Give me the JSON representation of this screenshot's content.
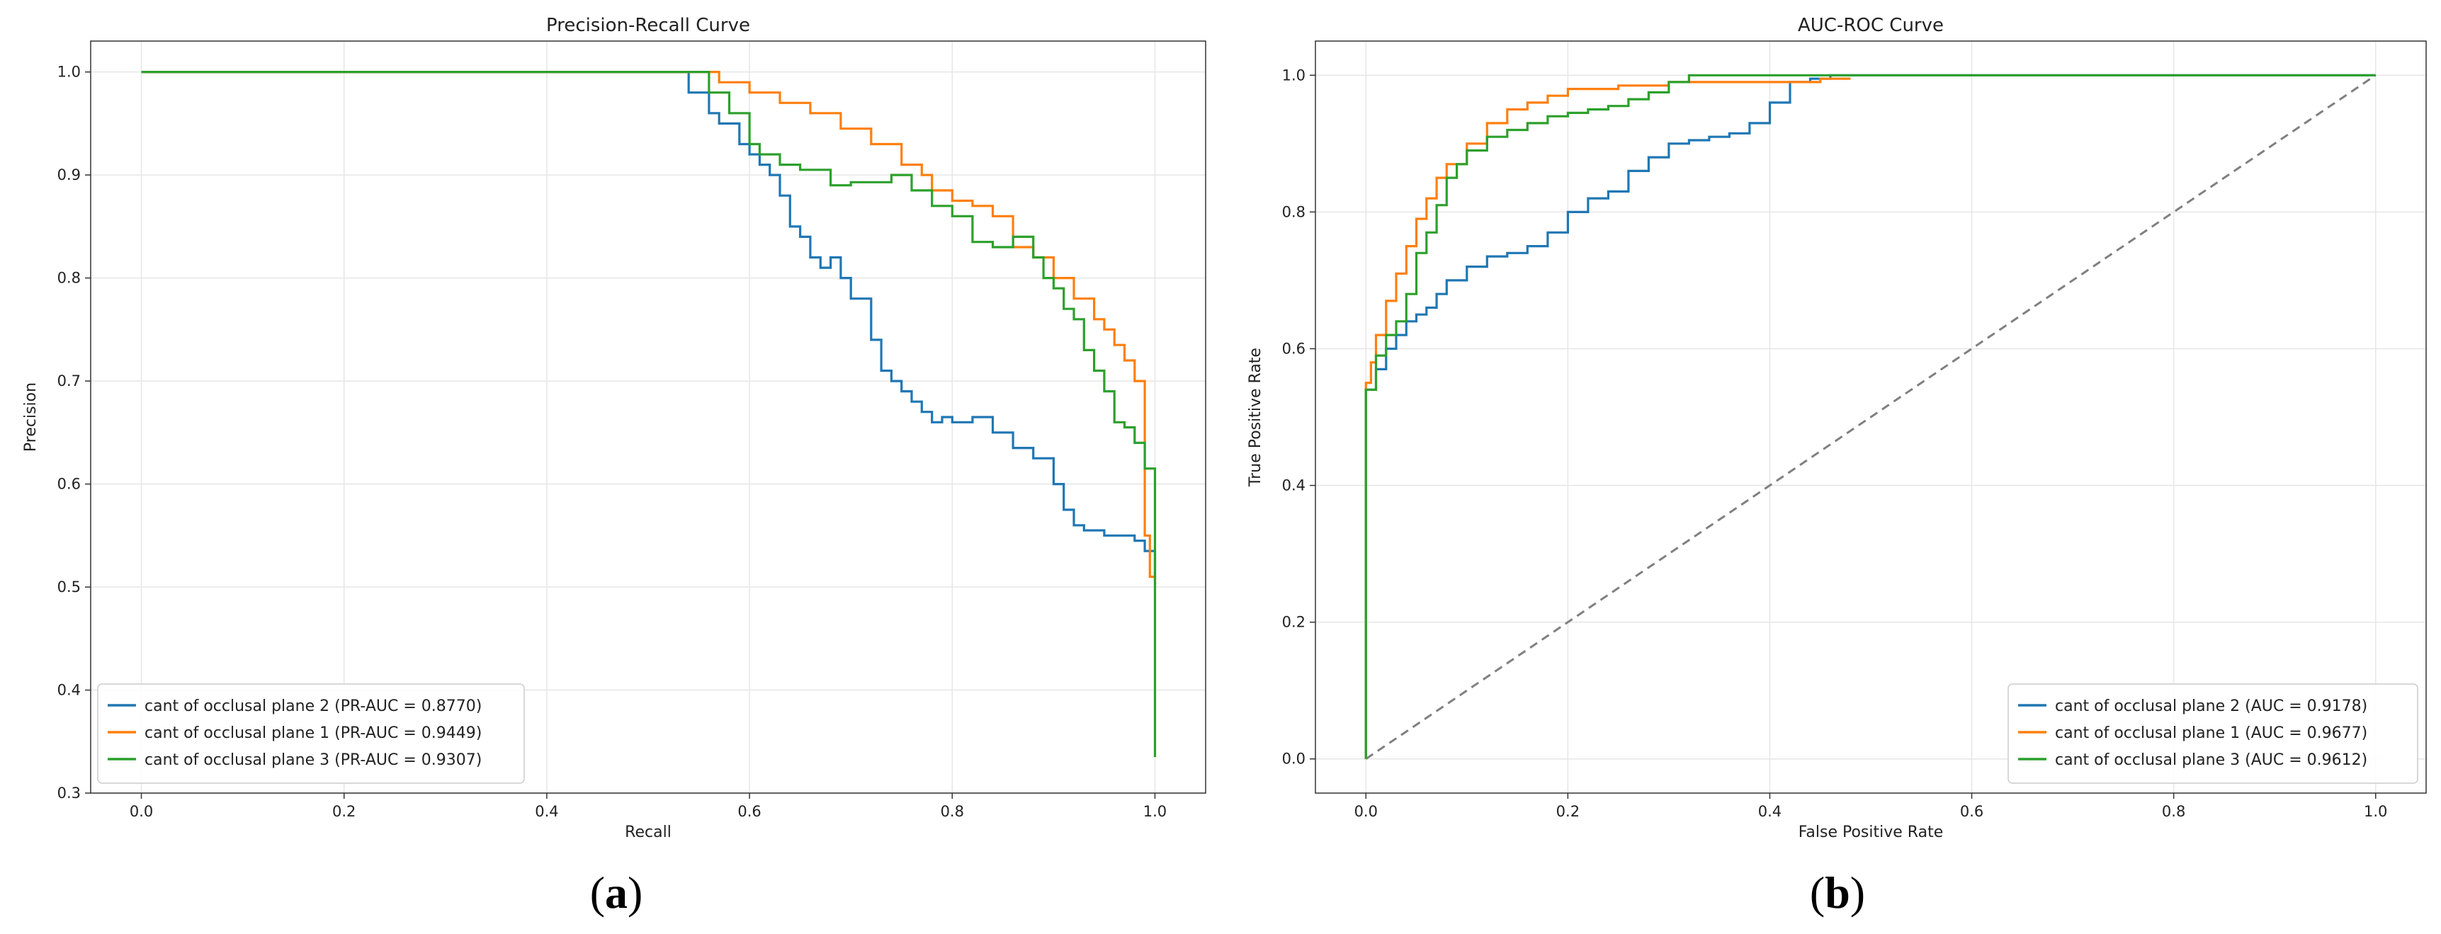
{
  "panels": [
    {
      "label_open": "(",
      "label_letter": "a",
      "label_close": ")"
    },
    {
      "label_open": "(",
      "label_letter": "b",
      "label_close": ")"
    }
  ],
  "colors": {
    "series_blue": "#1f77b4",
    "series_orange": "#ff7f0e",
    "series_green": "#2ca02c",
    "grid": "#e6e6e6",
    "diagonal": "#808080"
  },
  "chart_data": [
    {
      "type": "line",
      "title": "Precision-Recall Curve",
      "xlabel": "Recall",
      "ylabel": "Precision",
      "xlim": [
        -0.05,
        1.05
      ],
      "ylim": [
        0.3,
        1.03
      ],
      "xticks": [
        0.0,
        0.2,
        0.4,
        0.6,
        0.8,
        1.0
      ],
      "xtick_labels": [
        "0.0",
        "0.2",
        "0.4",
        "0.6",
        "0.8",
        "1.0"
      ],
      "yticks": [
        0.3,
        0.4,
        0.5,
        0.6,
        0.7,
        0.8,
        0.9,
        1.0
      ],
      "ytick_labels": [
        "0.3",
        "0.4",
        "0.5",
        "0.6",
        "0.7",
        "0.8",
        "0.9",
        "1.0"
      ],
      "grid": true,
      "legend_position": "lower-left",
      "series": [
        {
          "name": "cant of occlusal plane  2 (PR-AUC = 0.8770)",
          "color": "#1f77b4",
          "x": [
            0.0,
            0.54,
            0.54,
            0.56,
            0.57,
            0.59,
            0.6,
            0.61,
            0.62,
            0.63,
            0.64,
            0.65,
            0.66,
            0.67,
            0.68,
            0.69,
            0.7,
            0.72,
            0.73,
            0.74,
            0.75,
            0.76,
            0.77,
            0.78,
            0.79,
            0.8,
            0.82,
            0.84,
            0.86,
            0.88,
            0.9,
            0.91,
            0.92,
            0.93,
            0.95,
            0.97,
            0.98,
            0.99,
            1.0,
            1.0
          ],
          "y": [
            1.0,
            1.0,
            0.98,
            0.96,
            0.95,
            0.93,
            0.92,
            0.91,
            0.9,
            0.88,
            0.85,
            0.84,
            0.82,
            0.81,
            0.82,
            0.8,
            0.78,
            0.74,
            0.71,
            0.7,
            0.69,
            0.68,
            0.67,
            0.66,
            0.665,
            0.66,
            0.665,
            0.65,
            0.635,
            0.625,
            0.6,
            0.575,
            0.56,
            0.555,
            0.55,
            0.55,
            0.545,
            0.535,
            0.52,
            0.51
          ]
        },
        {
          "name": "cant of occlusal plane 1 (PR-AUC = 0.9449)",
          "color": "#ff7f0e",
          "x": [
            0.0,
            0.55,
            0.57,
            0.6,
            0.63,
            0.66,
            0.69,
            0.72,
            0.75,
            0.77,
            0.78,
            0.8,
            0.82,
            0.84,
            0.86,
            0.88,
            0.9,
            0.92,
            0.94,
            0.95,
            0.96,
            0.97,
            0.98,
            0.99,
            0.99,
            0.995,
            1.0
          ],
          "y": [
            1.0,
            1.0,
            0.99,
            0.98,
            0.97,
            0.96,
            0.945,
            0.93,
            0.91,
            0.9,
            0.885,
            0.875,
            0.87,
            0.86,
            0.83,
            0.82,
            0.8,
            0.78,
            0.76,
            0.75,
            0.735,
            0.72,
            0.7,
            0.66,
            0.55,
            0.51,
            0.5
          ]
        },
        {
          "name": "cant of occlusal plane 3 (PR-AUC = 0.9307)",
          "color": "#2ca02c",
          "x": [
            0.0,
            0.55,
            0.56,
            0.58,
            0.6,
            0.61,
            0.63,
            0.65,
            0.68,
            0.7,
            0.74,
            0.76,
            0.78,
            0.8,
            0.82,
            0.84,
            0.86,
            0.88,
            0.89,
            0.9,
            0.91,
            0.92,
            0.93,
            0.94,
            0.95,
            0.96,
            0.97,
            0.98,
            0.99,
            1.0,
            1.0,
            1.0
          ],
          "y": [
            1.0,
            1.0,
            0.98,
            0.96,
            0.93,
            0.92,
            0.91,
            0.905,
            0.89,
            0.893,
            0.9,
            0.885,
            0.87,
            0.86,
            0.835,
            0.83,
            0.84,
            0.82,
            0.8,
            0.79,
            0.77,
            0.76,
            0.73,
            0.71,
            0.69,
            0.66,
            0.655,
            0.64,
            0.615,
            0.61,
            0.5,
            0.335
          ]
        }
      ]
    },
    {
      "type": "line",
      "title": "AUC-ROC Curve",
      "xlabel": "False Positive Rate",
      "ylabel": "True Positive Rate",
      "xlim": [
        -0.05,
        1.05
      ],
      "ylim": [
        -0.05,
        1.05
      ],
      "xticks": [
        0.0,
        0.2,
        0.4,
        0.6,
        0.8,
        1.0
      ],
      "xtick_labels": [
        "0.0",
        "0.2",
        "0.4",
        "0.6",
        "0.8",
        "1.0"
      ],
      "yticks": [
        0.0,
        0.2,
        0.4,
        0.6,
        0.8,
        1.0
      ],
      "ytick_labels": [
        "0.0",
        "0.2",
        "0.4",
        "0.6",
        "0.8",
        "1.0"
      ],
      "grid": true,
      "legend_position": "lower-right",
      "series": [
        {
          "name": "cant of occlusal plane  2 (AUC = 0.9178)",
          "color": "#1f77b4",
          "x": [
            0.0,
            0.0,
            0.01,
            0.02,
            0.03,
            0.04,
            0.05,
            0.06,
            0.07,
            0.08,
            0.1,
            0.12,
            0.14,
            0.16,
            0.18,
            0.2,
            0.22,
            0.24,
            0.26,
            0.28,
            0.3,
            0.32,
            0.34,
            0.36,
            0.38,
            0.4,
            0.42,
            0.44,
            0.46,
            0.5,
            0.6,
            0.8,
            1.0
          ],
          "y": [
            0.0,
            0.54,
            0.57,
            0.6,
            0.62,
            0.64,
            0.65,
            0.66,
            0.68,
            0.7,
            0.72,
            0.735,
            0.74,
            0.75,
            0.77,
            0.8,
            0.82,
            0.83,
            0.86,
            0.88,
            0.9,
            0.905,
            0.91,
            0.915,
            0.93,
            0.96,
            0.99,
            0.995,
            1.0,
            1.0,
            1.0,
            1.0,
            1.0
          ]
        },
        {
          "name": "cant of occlusal plane 1 (AUC = 0.9677)",
          "color": "#ff7f0e",
          "x": [
            0.0,
            0.0,
            0.005,
            0.01,
            0.02,
            0.03,
            0.04,
            0.05,
            0.06,
            0.07,
            0.08,
            0.1,
            0.12,
            0.14,
            0.16,
            0.18,
            0.2,
            0.25,
            0.3,
            0.35,
            0.4,
            0.45,
            0.48
          ],
          "y": [
            0.0,
            0.55,
            0.58,
            0.62,
            0.67,
            0.71,
            0.75,
            0.79,
            0.82,
            0.85,
            0.87,
            0.9,
            0.93,
            0.95,
            0.96,
            0.97,
            0.98,
            0.985,
            0.99,
            0.99,
            0.99,
            0.995,
            0.995
          ]
        },
        {
          "name": "cant of occlusal plane 3 (AUC = 0.9612)",
          "color": "#2ca02c",
          "x": [
            0.0,
            0.0,
            0.01,
            0.02,
            0.03,
            0.04,
            0.05,
            0.06,
            0.07,
            0.08,
            0.09,
            0.1,
            0.12,
            0.14,
            0.16,
            0.18,
            0.2,
            0.22,
            0.24,
            0.26,
            0.28,
            0.3,
            0.32,
            0.5,
            0.7,
            1.0
          ],
          "y": [
            0.0,
            0.54,
            0.59,
            0.62,
            0.64,
            0.68,
            0.74,
            0.77,
            0.81,
            0.85,
            0.87,
            0.89,
            0.91,
            0.92,
            0.93,
            0.94,
            0.945,
            0.95,
            0.955,
            0.965,
            0.975,
            0.99,
            1.0,
            1.0,
            1.0,
            1.0
          ]
        }
      ],
      "reference_line": {
        "x": [
          0.0,
          1.0
        ],
        "y": [
          0.0,
          1.0
        ],
        "style": "dashed",
        "color": "#808080"
      }
    }
  ]
}
